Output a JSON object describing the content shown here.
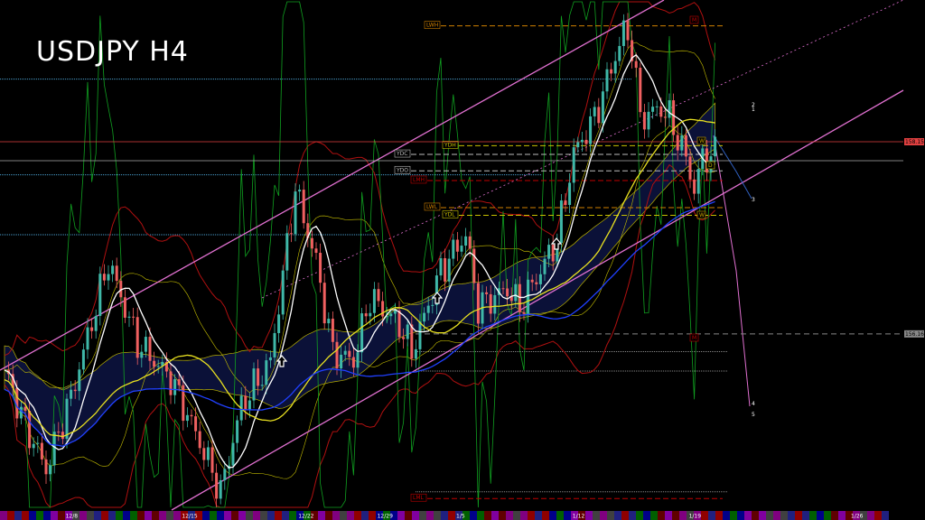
{
  "chart_data": {
    "type": "candlestick",
    "title": "USDJPY H4",
    "x_unit": "H4 bar index",
    "x_ticks": [
      {
        "bar": 16,
        "label": "12/8"
      },
      {
        "bar": 44,
        "label": "12/15"
      },
      {
        "bar": 72,
        "label": "12/22"
      },
      {
        "bar": 91,
        "label": "12/29"
      },
      {
        "bar": 110,
        "label": "1/5"
      },
      {
        "bar": 138,
        "label": "1/12"
      },
      {
        "bar": 166,
        "label": "1/19"
      },
      {
        "bar": 205,
        "label": "1/26"
      }
    ],
    "price_path": [
      [
        0,
        155.79
      ],
      [
        5,
        155.23
      ],
      [
        10,
        154.76
      ],
      [
        16,
        155.51
      ],
      [
        25,
        156.91
      ],
      [
        32,
        156.07
      ],
      [
        40,
        155.7
      ],
      [
        46,
        155.14
      ],
      [
        52,
        154.53
      ],
      [
        57,
        155.42
      ],
      [
        64,
        155.88
      ],
      [
        70,
        157.66
      ],
      [
        75,
        156.91
      ],
      [
        79,
        155.98
      ],
      [
        84,
        155.88
      ],
      [
        88,
        156.54
      ],
      [
        95,
        156.26
      ],
      [
        98,
        155.98
      ],
      [
        105,
        156.82
      ],
      [
        111,
        157.19
      ],
      [
        114,
        156.44
      ],
      [
        121,
        156.63
      ],
      [
        124,
        156.44
      ],
      [
        129,
        156.82
      ],
      [
        133,
        157.14
      ],
      [
        137,
        158.03
      ],
      [
        142,
        158.4
      ],
      [
        149,
        159.29
      ],
      [
        151,
        159.15
      ],
      [
        153,
        158.4
      ],
      [
        158,
        158.5
      ],
      [
        160,
        158.4
      ],
      [
        164,
        157.98
      ],
      [
        166,
        157.66
      ],
      [
        168,
        157.98
      ],
      [
        171,
        158.03
      ]
    ],
    "price_labels": [
      {
        "price": 158.152,
        "text": "158.152",
        "color": "#e04040"
      },
      {
        "price": 156.164,
        "text": "156.164",
        "color": "#888888"
      }
    ],
    "levels": [
      {
        "label": "LWH",
        "price": 159.36,
        "color": "#d08000",
        "style": "dashed"
      },
      {
        "label": "YDH",
        "price": 158.12,
        "color": "#c8c000",
        "style": "dashed"
      },
      {
        "label": "YDC",
        "price": 158.03,
        "color": "#bbbbbb",
        "style": "dashed"
      },
      {
        "label": "YDO",
        "price": 157.86,
        "color": "#bbbbbb",
        "style": "dashed"
      },
      {
        "label": "LMH",
        "price": 157.76,
        "color": "#c00000",
        "style": "dashed"
      },
      {
        "label": "LWL",
        "price": 157.48,
        "color": "#d08000",
        "style": "dashed"
      },
      {
        "label": "YDL",
        "price": 157.4,
        "color": "#c8c000",
        "style": "dashed"
      },
      {
        "label": "LML",
        "price": 154.47,
        "color": "#c00000",
        "style": "dashed"
      }
    ],
    "markers": [
      {
        "text": "M",
        "color": "#c00000"
      },
      {
        "text": "M",
        "color": "#c00000"
      },
      {
        "text": "W",
        "color": "#c8a000"
      },
      {
        "text": "W",
        "color": "#c8a000"
      },
      {
        "text": "D",
        "color": "#c8c000"
      }
    ],
    "wave_labels": [
      "1",
      "2",
      "3",
      "4",
      "5"
    ],
    "colors": {
      "bull": "#3fb8a8",
      "bear": "#f06060",
      "channel": "#e070d0",
      "ma_fast": "#ffffff",
      "ma_mid": "#e8e020",
      "ma_slow": "#2040ff",
      "bands": "#b01010",
      "cloud": "#2030a0"
    }
  }
}
